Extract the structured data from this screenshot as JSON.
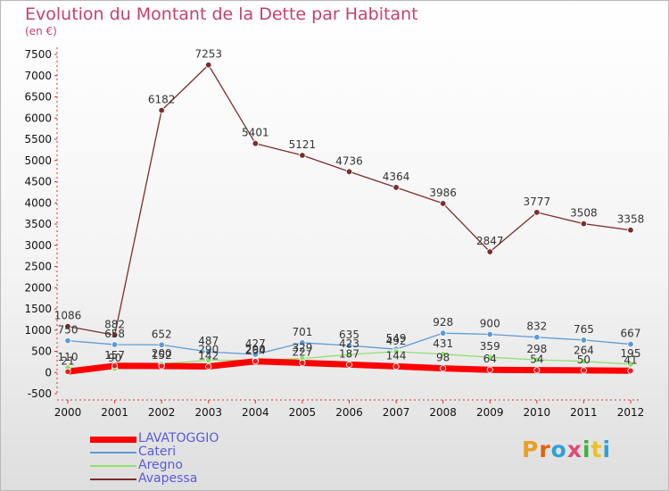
{
  "title": "Evolution du Montant de la Dette par Habitant",
  "unit": "(en €)",
  "logo": {
    "text": "Proxiti",
    "colors": [
      "#e8a020",
      "#e06010",
      "#2ea0d8",
      "#e04878",
      "#40b040",
      "#f0c020",
      "#2ea0d8"
    ]
  },
  "chart_data": {
    "type": "line",
    "title": "Evolution du Montant de la Dette par Habitant",
    "subtitle": "(en €)",
    "x": [
      "2000",
      "2001",
      "2002",
      "2003",
      "2004",
      "2005",
      "2006",
      "2007",
      "2008",
      "2009",
      "2010",
      "2011",
      "2012"
    ],
    "ylim": [
      -500,
      7500
    ],
    "yticks": [
      -500,
      0,
      500,
      1000,
      1500,
      2000,
      2500,
      3000,
      3500,
      4000,
      4500,
      5000,
      5500,
      6000,
      6500,
      7000,
      7500
    ],
    "grid": false,
    "legend": "bottom-left",
    "series": [
      {
        "name": "LAVATOGGIO",
        "color": "#ff0000",
        "width": 7,
        "values": [
          21,
          157,
          152,
          142,
          264,
          227,
          187,
          144,
          98,
          64,
          54,
          50,
          41
        ]
      },
      {
        "name": "Cateri",
        "color": "#5b9bd5",
        "width": 1.3,
        "values": [
          750,
          658,
          652,
          487,
          427,
          701,
          635,
          549,
          928,
          900,
          832,
          765,
          667
        ]
      },
      {
        "name": "Aregno",
        "color": "#8ee06e",
        "width": 1.3,
        "values": [
          110,
          90,
          200,
          290,
          290,
          329,
          423,
          492,
          431,
          359,
          298,
          264,
          195
        ]
      },
      {
        "name": "Avapessa",
        "color": "#7b2d2d",
        "width": 1.3,
        "values": [
          1086,
          882,
          6182,
          7253,
          5401,
          5121,
          4736,
          4364,
          3986,
          2847,
          3777,
          3508,
          3358
        ]
      }
    ],
    "labels": [
      {
        "series": 0,
        "values": [
          "21",
          "157",
          "152",
          "142",
          "264",
          "227",
          "187",
          "144",
          "98",
          "64",
          "54",
          "50",
          "41"
        ]
      },
      {
        "series": 1,
        "values": [
          "750",
          "658",
          "652",
          "487",
          "427",
          "701",
          "635",
          "549",
          "928",
          "900",
          "832",
          "765",
          "667"
        ]
      },
      {
        "series": 2,
        "values": [
          "110",
          "90",
          "200",
          "290",
          "290",
          "329",
          "423",
          "492",
          "431",
          "359",
          "298",
          "264",
          "195"
        ]
      },
      {
        "series": 3,
        "values": [
          "1086",
          "882",
          "6182",
          "7253",
          "5401",
          "5121",
          "4736",
          "4364",
          "3986",
          "2847",
          "3777",
          "3508",
          "3358"
        ]
      }
    ]
  }
}
